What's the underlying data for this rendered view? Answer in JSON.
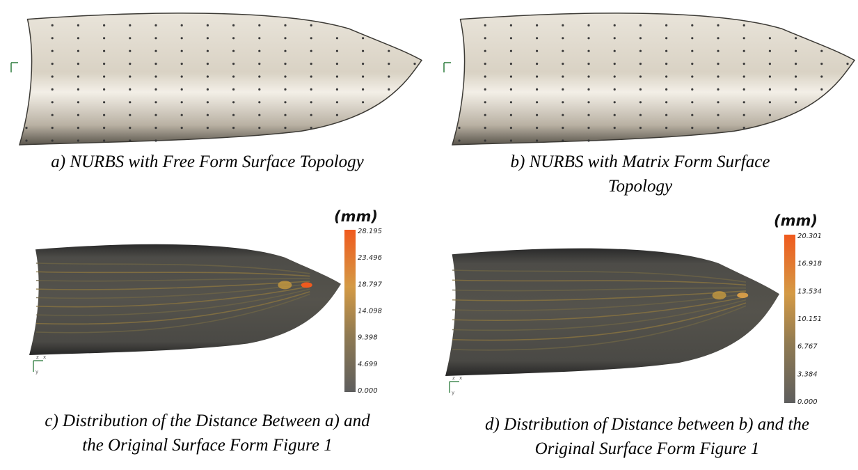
{
  "panels": [
    {
      "caption": [
        "a) NURBS with Free Form Surface Topology"
      ]
    },
    {
      "caption": [
        "b) NURBS with Matrix Form Surface",
        "Topology"
      ]
    },
    {
      "caption": [
        "c) Distribution of the Distance Between a) and",
        "the Original Surface Form Figure 1"
      ],
      "colorbar": {
        "unit": "(mm)",
        "ticks": [
          "28.195",
          "23.496",
          "18.797",
          "14.098",
          "9.398",
          "4.699",
          "0.000"
        ]
      },
      "axes": [
        "z",
        "x",
        "y"
      ]
    },
    {
      "caption": [
        "d) Distribution of Distance between b) and the",
        "Original Surface Form Figure 1"
      ],
      "colorbar": {
        "unit": "(mm)",
        "ticks": [
          "20.301",
          "16.918",
          "13.534",
          "10.151",
          "6.767",
          "3.384",
          "0.000"
        ]
      },
      "axes": [
        "z",
        "x",
        "y"
      ]
    }
  ]
}
